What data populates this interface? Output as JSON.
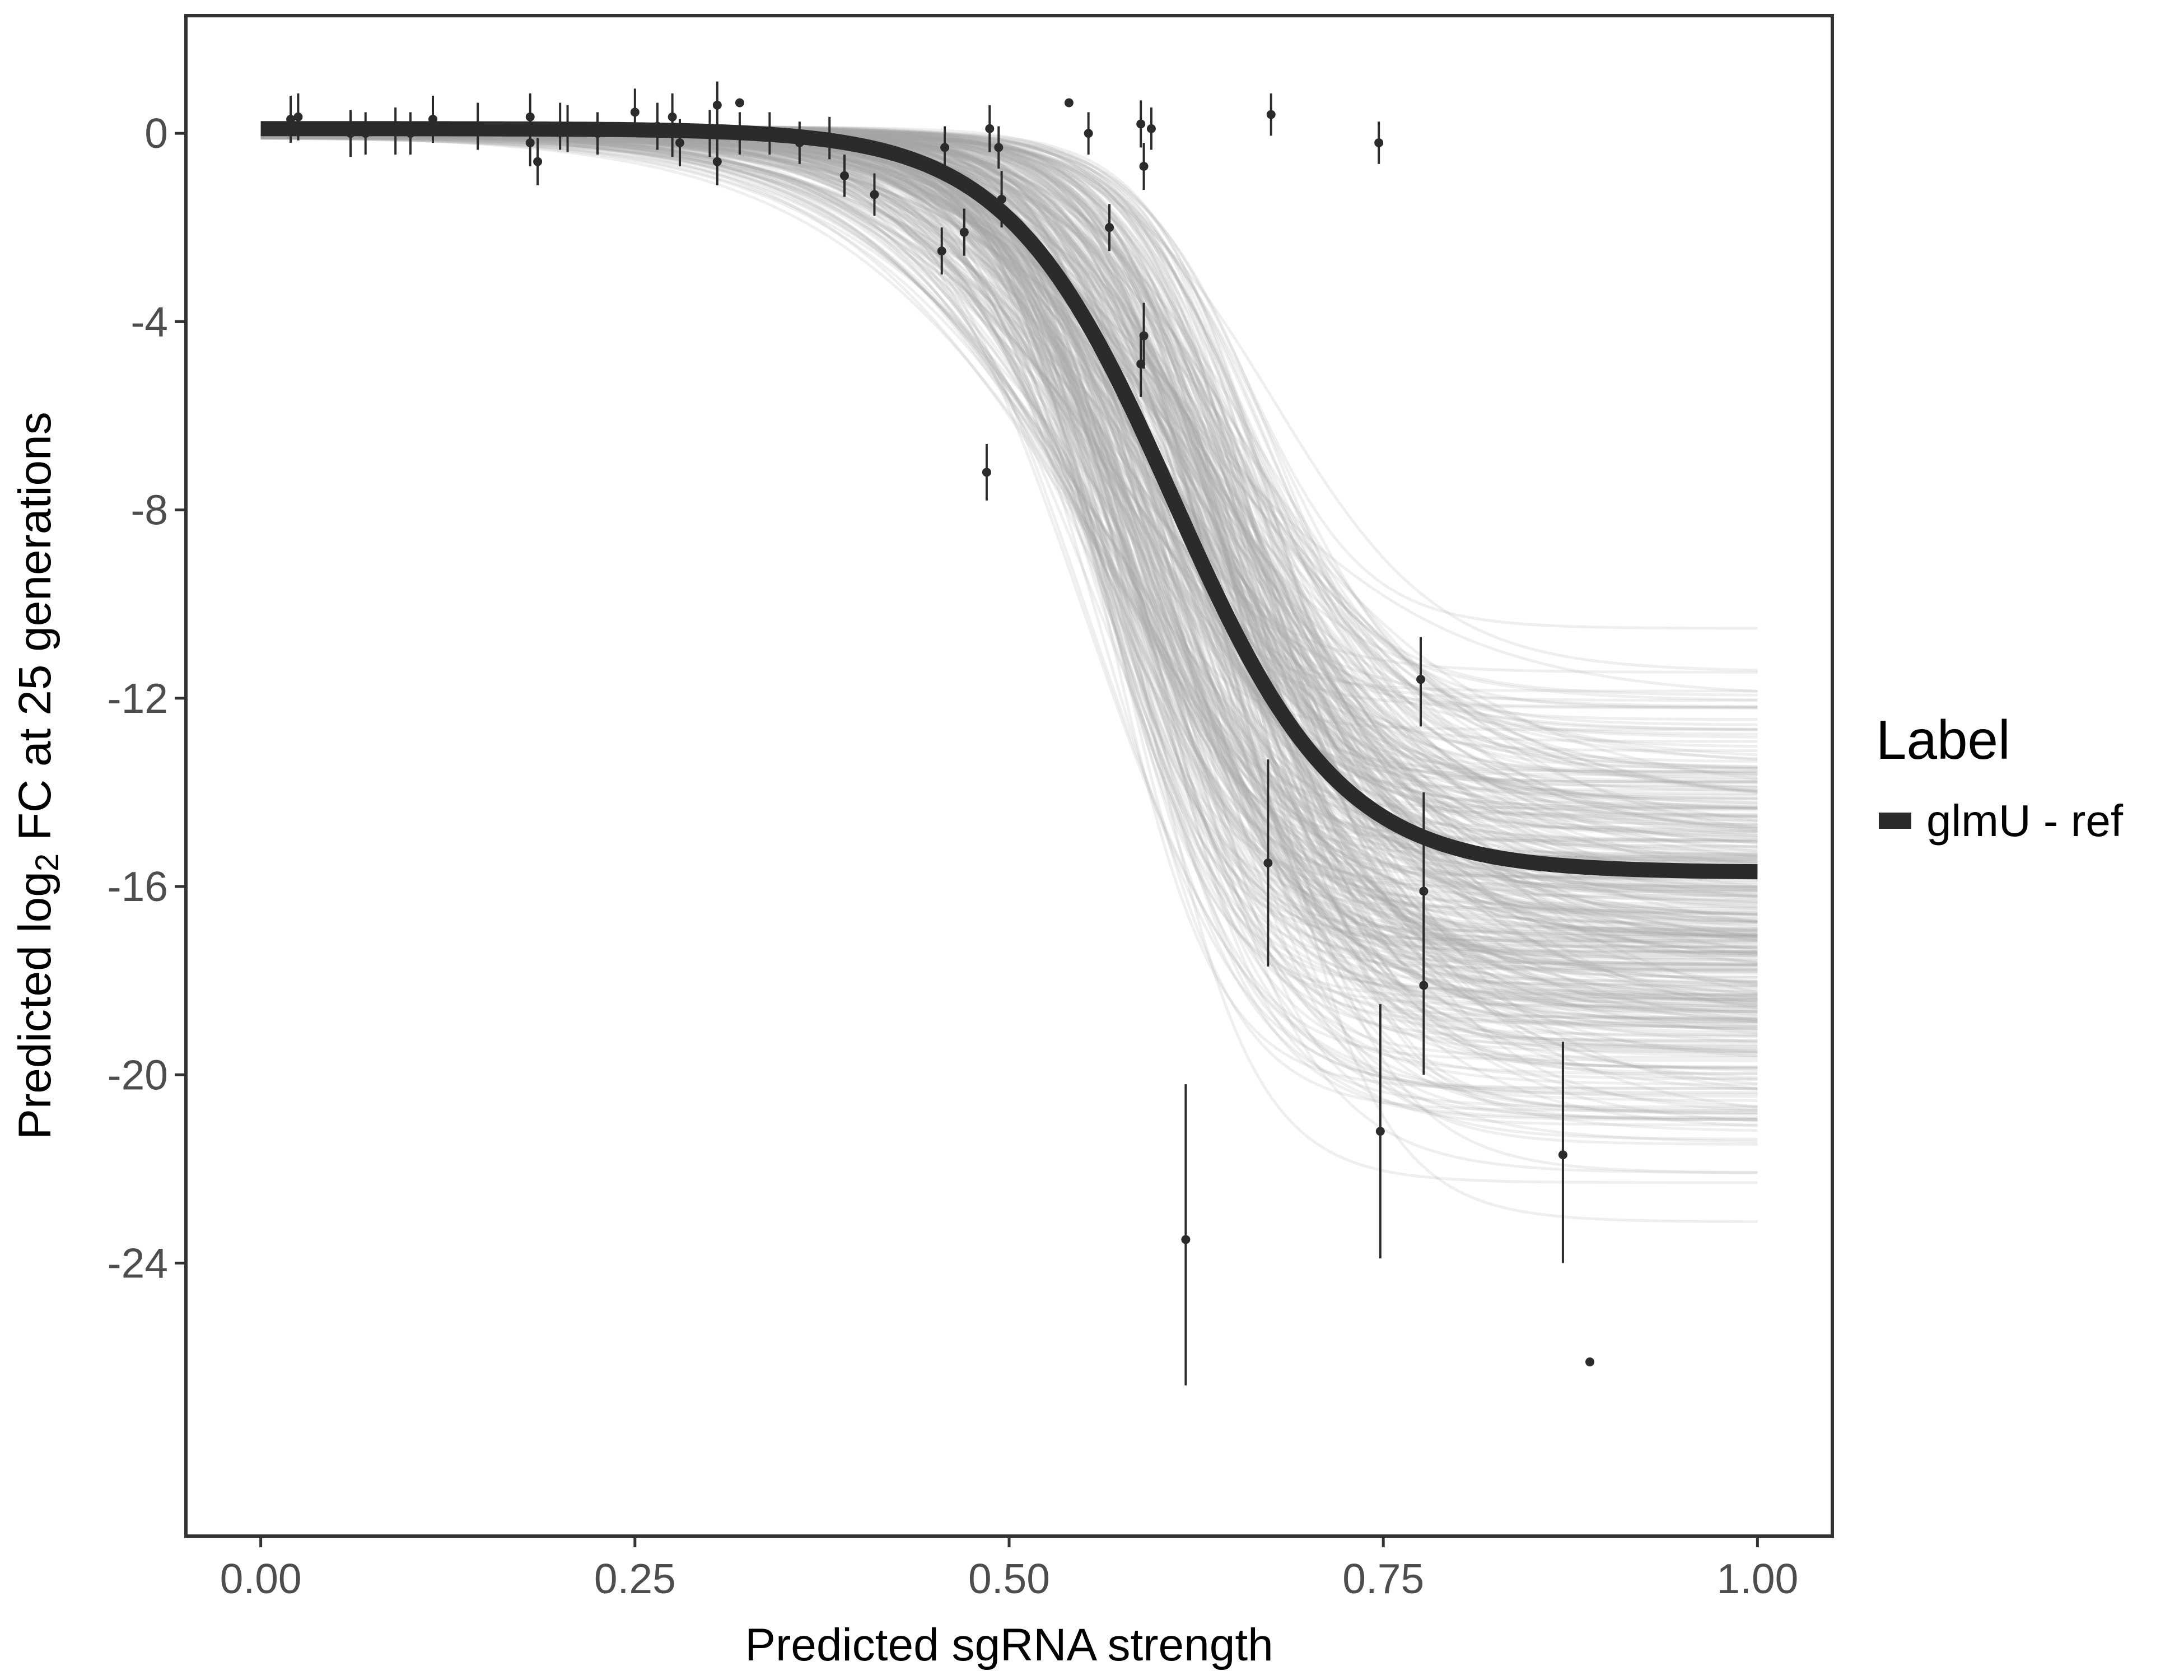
{
  "colors": {
    "panel_border": "#333333",
    "main_curve": "#2b2b2b",
    "draw_curves": "#a6a6a6",
    "points": "#2b2b2b",
    "tick_text": "#4d4d4d"
  },
  "chart_data": {
    "type": "line",
    "title": "",
    "xlabel": "Predicted sgRNA strength",
    "ylabel_parts": {
      "prefix": "Predicted  log",
      "subscript": "2",
      "suffix": " FC at 25 generations"
    },
    "xlim": [
      -0.05,
      1.05
    ],
    "ylim": [
      -29.8,
      2.5
    ],
    "x_ticks": [
      0,
      0.25,
      0.5,
      0.75,
      1.0
    ],
    "x_tick_labels": [
      "0.00",
      "0.25",
      "0.50",
      "0.75",
      "1.00"
    ],
    "y_ticks": [
      0,
      -4,
      -8,
      -12,
      -16,
      -20,
      -24
    ],
    "y_tick_labels": [
      "0",
      "-4",
      "-8",
      "-12",
      "-16",
      "-20",
      "-24"
    ],
    "grid": false,
    "legend": {
      "title": "Label",
      "position": "right",
      "entries": [
        "glmU - ref"
      ]
    },
    "main_curve": {
      "name": "glmU - ref",
      "lower": -15.7,
      "upper": 0.1,
      "midpoint": 0.61,
      "slope": 18
    },
    "posterior_draws": {
      "count": 400,
      "lower_range": [
        -24.1,
        -9.7
      ],
      "midpoint_range": [
        0.55,
        0.68
      ],
      "slope_range": [
        10,
        28
      ]
    },
    "points": [
      {
        "x": 0.02,
        "y": 0.3,
        "lo": -0.2,
        "hi": 0.8
      },
      {
        "x": 0.025,
        "y": 0.35,
        "lo": -0.15,
        "hi": 0.85
      },
      {
        "x": 0.06,
        "y": 0.0,
        "lo": -0.5,
        "hi": 0.5
      },
      {
        "x": 0.07,
        "y": 0.0,
        "lo": -0.45,
        "hi": 0.45
      },
      {
        "x": 0.09,
        "y": 0.05,
        "lo": -0.45,
        "hi": 0.55
      },
      {
        "x": 0.1,
        "y": 0.0,
        "lo": -0.45,
        "hi": 0.45
      },
      {
        "x": 0.115,
        "y": 0.3,
        "lo": -0.2,
        "hi": 0.8
      },
      {
        "x": 0.145,
        "y": 0.15,
        "lo": -0.35,
        "hi": 0.65
      },
      {
        "x": 0.18,
        "y": 0.35,
        "lo": -0.15,
        "hi": 0.85
      },
      {
        "x": 0.18,
        "y": -0.2,
        "lo": -0.7,
        "hi": 0.3
      },
      {
        "x": 0.185,
        "y": -0.6,
        "lo": -1.1,
        "hi": -0.1
      },
      {
        "x": 0.2,
        "y": 0.15,
        "lo": -0.35,
        "hi": 0.65
      },
      {
        "x": 0.205,
        "y": 0.1,
        "lo": -0.4,
        "hi": 0.6
      },
      {
        "x": 0.225,
        "y": 0.0,
        "lo": -0.45,
        "hi": 0.45
      },
      {
        "x": 0.25,
        "y": 0.45,
        "lo": -0.05,
        "hi": 0.95
      },
      {
        "x": 0.265,
        "y": 0.15,
        "lo": -0.35,
        "hi": 0.65
      },
      {
        "x": 0.275,
        "y": 0.0,
        "lo": -0.5,
        "hi": 0.5
      },
      {
        "x": 0.275,
        "y": 0.35,
        "lo": -0.15,
        "hi": 0.85
      },
      {
        "x": 0.28,
        "y": -0.2,
        "lo": -0.7,
        "hi": 0.3
      },
      {
        "x": 0.3,
        "y": 0.0,
        "lo": -0.5,
        "hi": 0.5
      },
      {
        "x": 0.305,
        "y": 0.6,
        "lo": 0.1,
        "hi": 1.1
      },
      {
        "x": 0.305,
        "y": -0.6,
        "lo": -1.1,
        "hi": -0.1
      },
      {
        "x": 0.32,
        "y": 0.65,
        "lo": 0.65,
        "hi": 0.65
      },
      {
        "x": 0.32,
        "y": 0.0,
        "lo": -0.45,
        "hi": 0.45
      },
      {
        "x": 0.34,
        "y": 0.0,
        "lo": -0.45,
        "hi": 0.45
      },
      {
        "x": 0.36,
        "y": -0.2,
        "lo": -0.65,
        "hi": 0.25
      },
      {
        "x": 0.38,
        "y": -0.1,
        "lo": -0.55,
        "hi": 0.35
      },
      {
        "x": 0.39,
        "y": -0.9,
        "lo": -1.35,
        "hi": -0.45
      },
      {
        "x": 0.41,
        "y": -1.3,
        "lo": -1.75,
        "hi": -0.85
      },
      {
        "x": 0.455,
        "y": -2.5,
        "lo": -3.0,
        "hi": -2.0
      },
      {
        "x": 0.457,
        "y": -0.3,
        "lo": -0.75,
        "hi": 0.15
      },
      {
        "x": 0.47,
        "y": -2.1,
        "lo": -2.6,
        "hi": -1.6
      },
      {
        "x": 0.485,
        "y": -7.2,
        "lo": -7.8,
        "hi": -6.6
      },
      {
        "x": 0.487,
        "y": 0.1,
        "lo": -0.4,
        "hi": 0.6
      },
      {
        "x": 0.493,
        "y": -0.3,
        "lo": -0.75,
        "hi": 0.15
      },
      {
        "x": 0.495,
        "y": -1.4,
        "lo": -2.0,
        "hi": -0.8
      },
      {
        "x": 0.54,
        "y": 0.65,
        "lo": 0.65,
        "hi": 0.65
      },
      {
        "x": 0.553,
        "y": 0.0,
        "lo": -0.45,
        "hi": 0.45
      },
      {
        "x": 0.567,
        "y": -2.0,
        "lo": -2.5,
        "hi": -1.5
      },
      {
        "x": 0.588,
        "y": 0.2,
        "lo": -0.3,
        "hi": 0.7
      },
      {
        "x": 0.588,
        "y": -4.9,
        "lo": -5.6,
        "hi": -4.3
      },
      {
        "x": 0.59,
        "y": -0.7,
        "lo": -1.2,
        "hi": -0.2
      },
      {
        "x": 0.59,
        "y": -4.3,
        "lo": -5.0,
        "hi": -3.6
      },
      {
        "x": 0.595,
        "y": 0.1,
        "lo": -0.35,
        "hi": 0.55
      },
      {
        "x": 0.618,
        "y": -23.5,
        "lo": -26.6,
        "hi": -20.2
      },
      {
        "x": 0.673,
        "y": -15.5,
        "lo": -17.7,
        "hi": -13.3
      },
      {
        "x": 0.675,
        "y": 0.4,
        "lo": -0.05,
        "hi": 0.85
      },
      {
        "x": 0.747,
        "y": -0.2,
        "lo": -0.65,
        "hi": 0.25
      },
      {
        "x": 0.748,
        "y": -21.2,
        "lo": -23.9,
        "hi": -18.5
      },
      {
        "x": 0.775,
        "y": -11.6,
        "lo": -12.6,
        "hi": -10.7
      },
      {
        "x": 0.777,
        "y": -16.1,
        "lo": -18.2,
        "hi": -14.0
      },
      {
        "x": 0.777,
        "y": -18.1,
        "lo": -20.0,
        "hi": -16.2
      },
      {
        "x": 0.87,
        "y": -21.7,
        "lo": -24.0,
        "hi": -19.3
      },
      {
        "x": 0.888,
        "y": -26.1,
        "lo": -26.1,
        "hi": -26.1
      }
    ]
  }
}
